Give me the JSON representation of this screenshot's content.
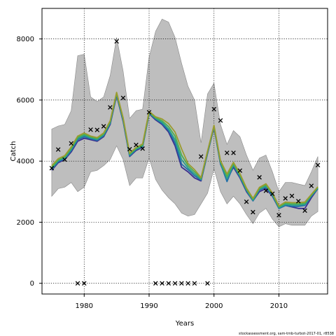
{
  "chart_data": {
    "type": "line",
    "xlabel": "Years",
    "ylabel": "Catch",
    "xlim": [
      1973.5,
      2017.5
    ],
    "ylim": [
      -350,
      9000
    ],
    "x_ticks": [
      1980,
      1990,
      2000,
      2010
    ],
    "y_ticks": [
      0,
      2000,
      4000,
      6000,
      8000
    ],
    "grid": true,
    "footnote": "stockassessment.org, sam-tmb-turbot-2017-01, r8538",
    "colors": {
      "band": "#bebebe",
      "band_edge": "#888888",
      "observed_marker": "#000000",
      "series": [
        "#3b2f8f",
        "#1f6fa8",
        "#2a9d8f",
        "#4caf50",
        "#9b9b2f"
      ]
    },
    "confidence_band": {
      "x": [
        1975,
        1976,
        1977,
        1978,
        1979,
        1980,
        1981,
        1982,
        1983,
        1984,
        1985,
        1986,
        1987,
        1988,
        1989,
        1990,
        1991,
        1992,
        1993,
        1994,
        1995,
        1996,
        1997,
        1998,
        1999,
        2000,
        2001,
        2002,
        2003,
        2004,
        2005,
        2006,
        2007,
        2008,
        2009,
        2010,
        2011,
        2012,
        2013,
        2014,
        2015,
        2016
      ],
      "upper": [
        5050,
        5150,
        5200,
        5650,
        7450,
        7500,
        6100,
        5950,
        6100,
        6800,
        8050,
        6950,
        5400,
        5650,
        5700,
        7400,
        8250,
        8650,
        8550,
        8050,
        7200,
        6450,
        6000,
        4600,
        6200,
        6550,
        5200,
        4550,
        5000,
        4800,
        4200,
        3700,
        4100,
        4200,
        3650,
        3000,
        3300,
        3300,
        3250,
        3200,
        3650,
        4150
      ],
      "lower": [
        2850,
        3100,
        3150,
        3300,
        3000,
        3150,
        3650,
        3700,
        3850,
        4050,
        4500,
        4050,
        3200,
        3450,
        3450,
        4100,
        3400,
        3050,
        2800,
        2600,
        2300,
        2200,
        2250,
        2600,
        2950,
        3750,
        3000,
        2600,
        2850,
        2600,
        2250,
        1950,
        2300,
        2450,
        2100,
        1850,
        1950,
        1900,
        1900,
        1900,
        2200,
        2350
      ]
    },
    "series": [
      {
        "x": [
          1975,
          1976,
          1977,
          1978,
          1979,
          1980,
          1981,
          1982,
          1983,
          1984,
          1985,
          1986,
          1987,
          1988,
          1989,
          1990,
          1991,
          1992,
          1993,
          1994,
          1995,
          1996,
          1997,
          1998,
          1999,
          2000,
          2001,
          2002,
          2003,
          2004,
          2005,
          2006,
          2007,
          2008,
          2009,
          2010,
          2011,
          2012,
          2013,
          2014,
          2015,
          2016
        ],
        "y": [
          3700,
          3950,
          4050,
          4300,
          4650,
          4750,
          4700,
          4650,
          4800,
          5200,
          6150,
          5300,
          4150,
          4350,
          4450,
          5550,
          5350,
          5200,
          4950,
          4500,
          3800,
          3650,
          3450,
          3350,
          4250,
          5100,
          3900,
          3400,
          3800,
          3450,
          3000,
          2700,
          3000,
          3100,
          2850,
          2450,
          2550,
          2500,
          2450,
          2450,
          2800,
          3100
        ]
      },
      {
        "x": [
          1975,
          1976,
          1977,
          1978,
          1979,
          1980,
          1981,
          1982,
          1983,
          1984,
          1985,
          1986,
          1987,
          1988,
          1989,
          1990,
          1991,
          1992,
          1993,
          1994,
          1995,
          1996,
          1997,
          1998,
          1999,
          2000,
          2001,
          2002,
          2003,
          2004,
          2005,
          2006,
          2007,
          2008,
          2009,
          2010,
          2011,
          2012,
          2013,
          2014,
          2015,
          2016
        ],
        "y": [
          3730,
          3980,
          4080,
          4340,
          4700,
          4800,
          4730,
          4680,
          4830,
          5230,
          6180,
          5330,
          4170,
          4380,
          4470,
          5570,
          5380,
          5230,
          5000,
          4600,
          3900,
          3720,
          3520,
          3380,
          4270,
          5120,
          3920,
          3330,
          3850,
          3480,
          3030,
          2700,
          3050,
          3150,
          2870,
          2450,
          2550,
          2520,
          2520,
          2550,
          2850,
          3100
        ]
      },
      {
        "x": [
          1975,
          1976,
          1977,
          1978,
          1979,
          1980,
          1981,
          1982,
          1983,
          1984,
          1985,
          1986,
          1987,
          1988,
          1989,
          1990,
          1991,
          1992,
          1993,
          1994,
          1995,
          1996,
          1997,
          1998,
          1999,
          2000,
          2001,
          2002,
          2003,
          2004,
          2005,
          2006,
          2007,
          2008,
          2009,
          2010,
          2011,
          2012,
          2013,
          2014,
          2015,
          2016
        ],
        "y": [
          3760,
          4010,
          4110,
          4380,
          4740,
          4840,
          4760,
          4710,
          4860,
          5260,
          6200,
          5360,
          4200,
          4400,
          4490,
          5580,
          5400,
          5270,
          5050,
          4700,
          4050,
          3780,
          3580,
          3400,
          4290,
          5130,
          3950,
          3420,
          3880,
          3510,
          3060,
          2720,
          3080,
          3180,
          2900,
          2470,
          2580,
          2560,
          2560,
          2580,
          2870,
          3120
        ]
      },
      {
        "x": [
          1975,
          1976,
          1977,
          1978,
          1979,
          1980,
          1981,
          1982,
          1983,
          1984,
          1985,
          1986,
          1987,
          1988,
          1989,
          1990,
          1991,
          1992,
          1993,
          1994,
          1995,
          1996,
          1997,
          1998,
          1999,
          2000,
          2001,
          2002,
          2003,
          2004,
          2005,
          2006,
          2007,
          2008,
          2009,
          2010,
          2011,
          2012,
          2013,
          2014,
          2015,
          2016
        ],
        "y": [
          3800,
          4040,
          4140,
          4420,
          4780,
          4880,
          4790,
          4740,
          4890,
          5290,
          6230,
          5390,
          4230,
          4420,
          4520,
          5600,
          5420,
          5320,
          5130,
          4820,
          4200,
          3850,
          3650,
          3430,
          4310,
          5150,
          3980,
          3500,
          3920,
          3550,
          3090,
          2750,
          3110,
          3220,
          2930,
          2500,
          2620,
          2600,
          2600,
          2620,
          2890,
          3140
        ]
      },
      {
        "x": [
          1975,
          1976,
          1977,
          1978,
          1979,
          1980,
          1981,
          1982,
          1983,
          1984,
          1985,
          1986,
          1987,
          1988,
          1989,
          1990,
          1991,
          1992,
          1993,
          1994,
          1995,
          1996,
          1997,
          1998,
          1999,
          2000,
          2001,
          2002,
          2003,
          2004,
          2005,
          2006,
          2007,
          2008,
          2009,
          2010,
          2011,
          2012,
          2013,
          2014,
          2015,
          2016
        ],
        "y": [
          3850,
          4080,
          4180,
          4460,
          4820,
          4920,
          4820,
          4770,
          4920,
          5320,
          6250,
          5420,
          4260,
          4450,
          4560,
          5630,
          5450,
          5380,
          5230,
          4950,
          4400,
          3920,
          3720,
          3460,
          4330,
          5170,
          4010,
          3580,
          3960,
          3590,
          3120,
          2780,
          3140,
          3260,
          2960,
          2530,
          2660,
          2640,
          2640,
          2660,
          2910,
          3160
        ]
      }
    ],
    "observed": {
      "x": [
        1975,
        1976,
        1977,
        1978,
        1979,
        1980,
        1981,
        1982,
        1983,
        1984,
        1985,
        1986,
        1987,
        1988,
        1989,
        1990,
        1991,
        1992,
        1993,
        1994,
        1995,
        1996,
        1997,
        1998,
        1999,
        2000,
        2001,
        2002,
        2003,
        2004,
        2005,
        2006,
        2007,
        2008,
        2009,
        2010,
        2011,
        2012,
        2013,
        2014,
        2015,
        2016
      ],
      "y": [
        3770,
        4380,
        4050,
        4580,
        0,
        0,
        5030,
        5020,
        5140,
        5760,
        7920,
        6070,
        4390,
        4530,
        4410,
        5600,
        0,
        0,
        0,
        0,
        0,
        0,
        0,
        4150,
        0,
        5700,
        5330,
        4270,
        4270,
        3690,
        2670,
        2330,
        3470,
        3030,
        2930,
        2230,
        2780,
        2860,
        2690,
        2380,
        3190,
        3870
      ]
    }
  }
}
